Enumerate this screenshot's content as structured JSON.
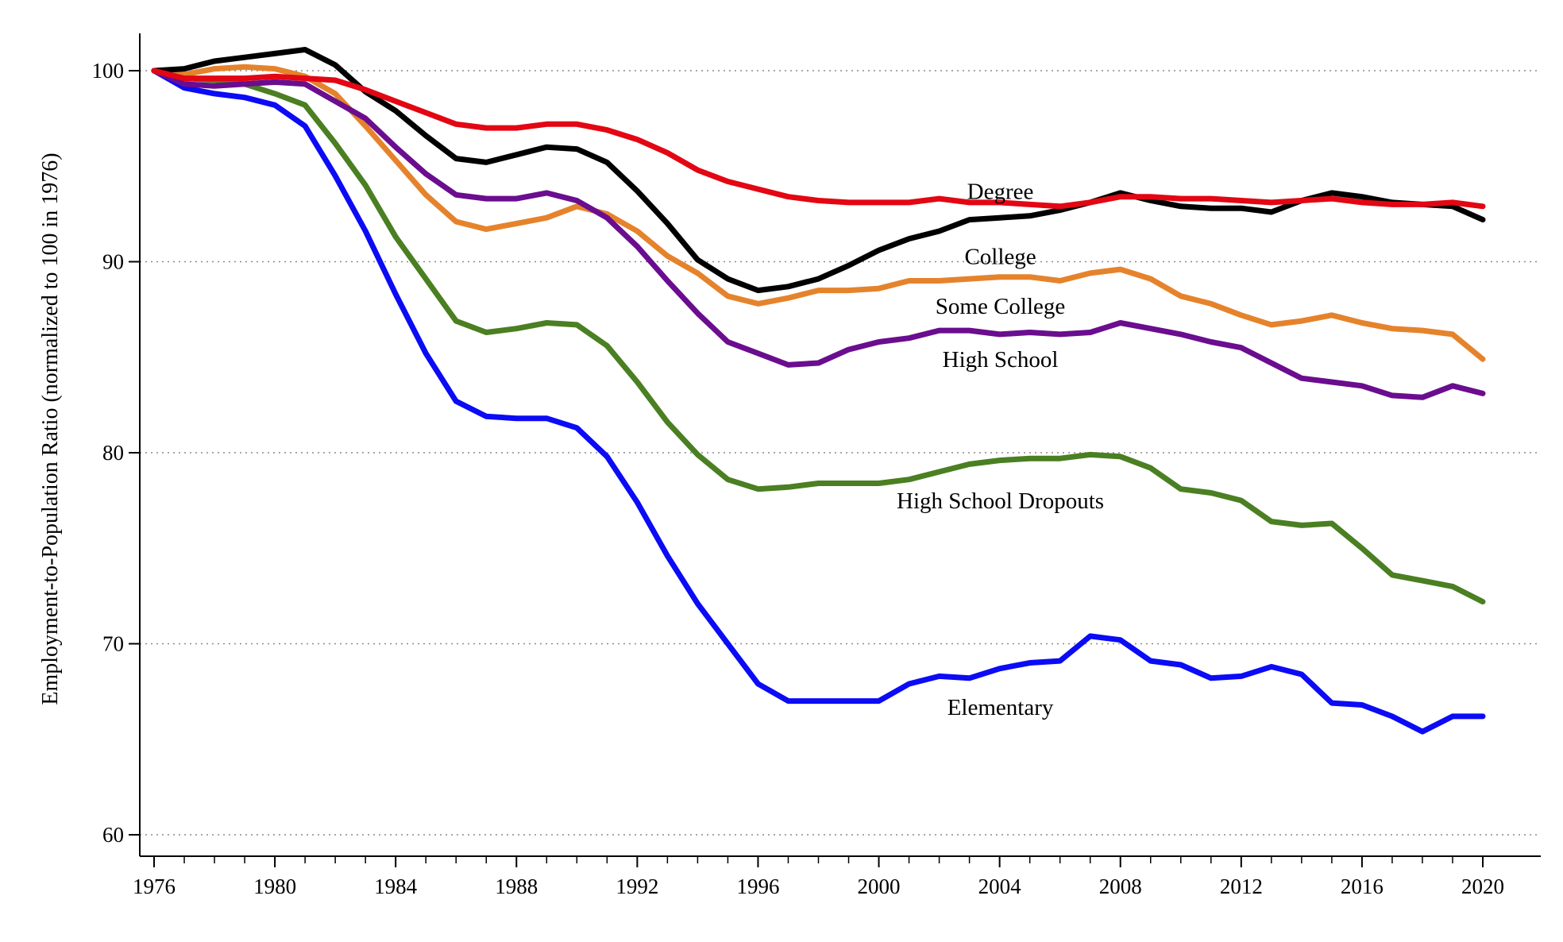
{
  "chart_data": {
    "type": "line",
    "ylabel": "Employment-to-Population Ratio (normalized to 100 in 1976)",
    "xlabel": "",
    "xlim": [
      1975,
      2022
    ],
    "ylim": [
      59,
      102
    ],
    "x_ticks": [
      1976,
      1980,
      1984,
      1988,
      1992,
      1996,
      2000,
      2004,
      2008,
      2012,
      2016,
      2020
    ],
    "y_ticks": [
      60,
      70,
      80,
      90,
      100
    ],
    "grid": "horizontal-dotted",
    "x": [
      1976,
      1977,
      1978,
      1979,
      1980,
      1981,
      1982,
      1983,
      1984,
      1985,
      1986,
      1987,
      1988,
      1989,
      1990,
      1991,
      1992,
      1993,
      1994,
      1995,
      1996,
      1997,
      1998,
      1999,
      2000,
      2001,
      2002,
      2003,
      2004,
      2005,
      2006,
      2007,
      2008,
      2009,
      2010,
      2011,
      2012,
      2013,
      2014,
      2015,
      2016,
      2017,
      2018,
      2019,
      2020
    ],
    "series": [
      {
        "name": "High School Dropouts",
        "color": "#4a7f22",
        "label_at": [
          2000,
          77.5
        ],
        "values": [
          100,
          99.6,
          99.5,
          99.3,
          98.8,
          98.2,
          96.2,
          94.0,
          91.3,
          89.1,
          86.9,
          86.3,
          86.5,
          86.8,
          86.7,
          85.6,
          83.7,
          81.6,
          79.9,
          78.6,
          78.1,
          78.2,
          78.4,
          78.4,
          78.4,
          78.6,
          79.0,
          79.4,
          79.6,
          79.7,
          79.7,
          79.9,
          79.8,
          79.2,
          78.1,
          77.9,
          77.5,
          76.4,
          76.2,
          76.3,
          75.0,
          73.6,
          73.3,
          73.0,
          72.2
        ]
      },
      {
        "name": "Elementary",
        "color": "#0b0bf5",
        "label_at": [
          2000,
          66.7
        ],
        "values": [
          100,
          99.1,
          98.8,
          98.6,
          98.2,
          97.1,
          94.5,
          91.6,
          88.3,
          85.2,
          82.7,
          81.9,
          81.8,
          81.8,
          81.3,
          79.8,
          77.4,
          74.6,
          72.1,
          70.0,
          67.9,
          67.0,
          67.0,
          67.0,
          67.0,
          67.9,
          68.3,
          68.2,
          68.7,
          69.0,
          69.1,
          70.4,
          70.2,
          69.1,
          68.9,
          68.2,
          68.3,
          68.8,
          68.4,
          66.9,
          66.8,
          66.2,
          65.4,
          66.2,
          66.2
        ]
      },
      {
        "name": "Some College",
        "color": "#e5832c",
        "label_at": [
          2000,
          87.7
        ],
        "values": [
          100,
          99.8,
          100.1,
          100.2,
          100.1,
          99.7,
          98.8,
          97.1,
          95.3,
          93.5,
          92.1,
          91.7,
          92.0,
          92.3,
          92.9,
          92.5,
          91.6,
          90.3,
          89.4,
          88.2,
          87.8,
          88.1,
          88.5,
          88.5,
          88.6,
          89.0,
          89.0,
          89.1,
          89.2,
          89.2,
          89.0,
          89.4,
          89.6,
          89.1,
          88.2,
          87.8,
          87.2,
          86.7,
          86.9,
          87.2,
          86.8,
          86.5,
          86.4,
          86.2,
          84.9
        ]
      },
      {
        "name": "High School",
        "color": "#6a0d8f",
        "label_at": [
          2000,
          84.9
        ],
        "values": [
          100,
          99.3,
          99.2,
          99.3,
          99.4,
          99.3,
          98.4,
          97.5,
          96.0,
          94.6,
          93.5,
          93.3,
          93.3,
          93.6,
          93.2,
          92.3,
          90.8,
          89.0,
          87.3,
          85.8,
          85.2,
          84.6,
          84.7,
          85.4,
          85.8,
          86.0,
          86.4,
          86.4,
          86.2,
          86.3,
          86.2,
          86.3,
          86.8,
          86.5,
          86.2,
          85.8,
          85.5,
          84.7,
          83.9,
          83.7,
          83.5,
          83.0,
          82.9,
          83.5,
          83.1
        ]
      },
      {
        "name": "College",
        "color": "#000000",
        "label_at": [
          2000,
          90.3
        ],
        "values": [
          100,
          100.1,
          100.5,
          100.7,
          100.9,
          101.1,
          100.3,
          98.9,
          97.9,
          96.6,
          95.4,
          95.2,
          95.6,
          96.0,
          95.9,
          95.2,
          93.7,
          92.0,
          90.1,
          89.1,
          88.5,
          88.7,
          89.1,
          89.8,
          90.6,
          91.2,
          91.6,
          92.2,
          92.3,
          92.4,
          92.7,
          93.1,
          93.6,
          93.2,
          92.9,
          92.8,
          92.8,
          92.6,
          93.2,
          93.6,
          93.4,
          93.1,
          93.0,
          92.9,
          92.2
        ]
      },
      {
        "name": "Degree",
        "color": "#e30613",
        "label_at": [
          2000,
          93.7
        ],
        "values": [
          100,
          99.6,
          99.6,
          99.6,
          99.7,
          99.6,
          99.5,
          99.0,
          98.4,
          97.8,
          97.2,
          97.0,
          97.0,
          97.2,
          97.2,
          96.9,
          96.4,
          95.7,
          94.8,
          94.2,
          93.8,
          93.4,
          93.2,
          93.1,
          93.1,
          93.1,
          93.3,
          93.1,
          93.1,
          93.0,
          92.9,
          93.1,
          93.4,
          93.4,
          93.3,
          93.3,
          93.2,
          93.1,
          93.2,
          93.3,
          93.1,
          93.0,
          93.0,
          93.1,
          92.9
        ]
      }
    ]
  }
}
